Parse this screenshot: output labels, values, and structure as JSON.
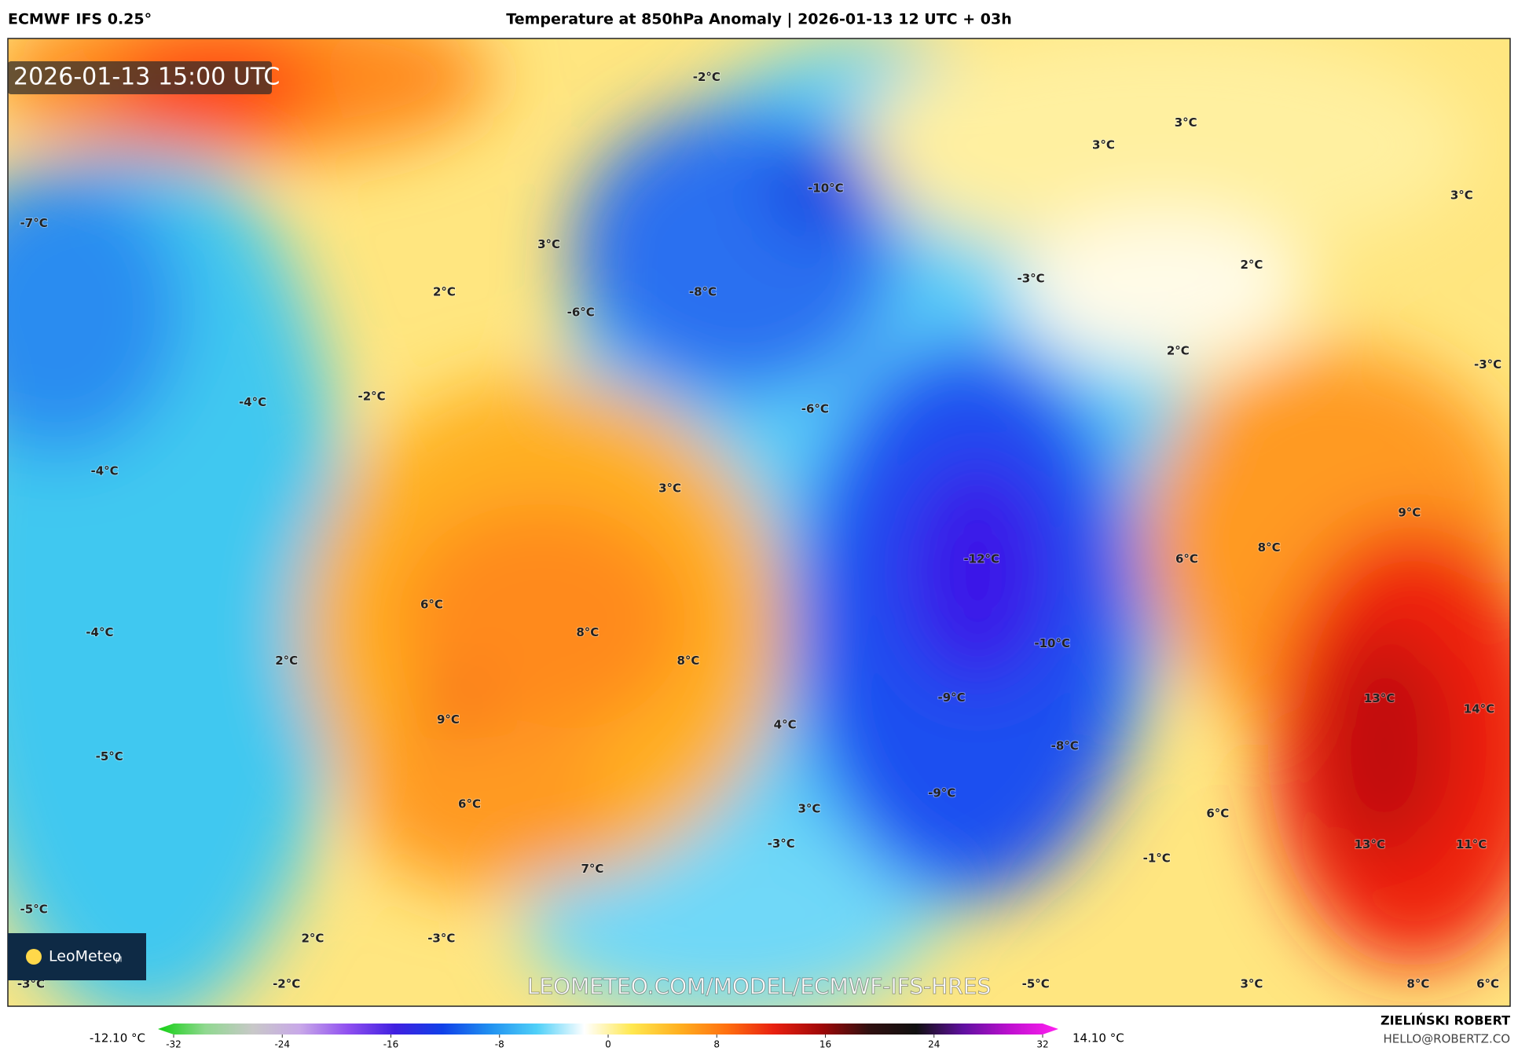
{
  "header": {
    "model": "ECMWF IFS 0.25°",
    "title": "Temperature at 850hPa Anomaly | 2026-01-13 12 UTC + 03h"
  },
  "map": {
    "timestamp": "2026-01-13 15:00 UTC",
    "logo": "LeoMeteo",
    "logo_suffix": "pl",
    "watermark": "LEOMETEO.COM/MODEL/ECMWF-IFS-HRES",
    "labels": [
      "-7°C",
      "3°C",
      "2°C",
      "-6°C",
      "-8°C",
      "-10°C",
      "-2°C",
      "3°C",
      "3°C",
      "3°C",
      "2°C",
      "-3°C",
      "2°C",
      "-3°C",
      "-4°C",
      "-2°C",
      "-6°C",
      "-4°C",
      "3°C",
      "9°C",
      "-12°C",
      "6°C",
      "8°C",
      "6°C",
      "-4°C",
      "8°C",
      "-10°C",
      "2°C",
      "8°C",
      "13°C",
      "14°C",
      "-9°C",
      "9°C",
      "4°C",
      "-8°C",
      "-5°C",
      "-9°C",
      "6°C",
      "3°C",
      "6°C",
      "-3°C",
      "13°C",
      "11°C",
      "-1°C",
      "7°C",
      "-5°C",
      "2°C",
      "-3°C",
      "-2°C",
      "-3°C",
      "-5°C",
      "3°C",
      "8°C",
      "6°C"
    ]
  },
  "colorbar": {
    "min_label": "-12.10 °C",
    "max_label": "14.10 °C",
    "range": [
      -32,
      32
    ],
    "ticks": [
      -32,
      -24,
      -16,
      -8,
      0,
      8,
      16,
      24,
      32
    ],
    "colors": [
      "#10d010",
      "#90d890",
      "#c8c8c8",
      "#c8a8e8",
      "#9050f0",
      "#4020e0",
      "#1040e8",
      "#2090f0",
      "#50d0f8",
      "#ffffff",
      "#ffe850",
      "#ffb020",
      "#ff7010",
      "#e82010",
      "#a00808",
      "#301010",
      "#101010",
      "#6010a0",
      "#c010d0",
      "#ff20f0"
    ]
  },
  "footer": {
    "author": "ZIELIŃSKI ROBERT",
    "email": "HELLO@ROBERTZ.CO"
  }
}
